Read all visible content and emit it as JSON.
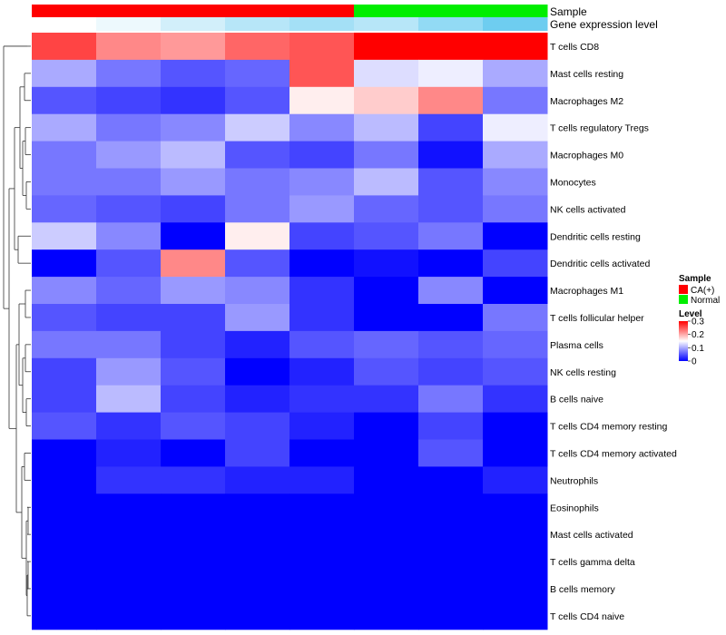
{
  "chart_data": {
    "type": "heatmap",
    "rows": [
      "T cells CD8",
      "Mast cells resting",
      "Macrophages M2",
      "T cells regulatory  Tregs",
      "Macrophages M0",
      "Monocytes",
      "NK cells activated",
      "Dendritic cells resting",
      "Dendritic cells activated",
      "Macrophages M1",
      "T cells follicular helper",
      "Plasma cells",
      "NK cells resting",
      "B cells naive",
      "T cells CD4 memory resting",
      "T cells CD4 memory activated",
      "Neutrophils",
      "Eosinophils",
      "Mast cells activated",
      "T cells gamma delta",
      "B cells memory",
      "T cells CD4 naive"
    ],
    "columns": 8,
    "values": [
      [
        0.26,
        0.22,
        0.21,
        0.24,
        0.25,
        0.3,
        0.3,
        0.3
      ],
      [
        0.1,
        0.07,
        0.05,
        0.06,
        0.25,
        0.13,
        0.14,
        0.1
      ],
      [
        0.05,
        0.04,
        0.03,
        0.05,
        0.16,
        0.18,
        0.22,
        0.07
      ],
      [
        0.1,
        0.07,
        0.08,
        0.12,
        0.08,
        0.11,
        0.04,
        0.14
      ],
      [
        0.07,
        0.09,
        0.11,
        0.05,
        0.04,
        0.07,
        0.01,
        0.1
      ],
      [
        0.07,
        0.07,
        0.09,
        0.07,
        0.08,
        0.11,
        0.05,
        0.08
      ],
      [
        0.06,
        0.05,
        0.04,
        0.07,
        0.09,
        0.06,
        0.05,
        0.07
      ],
      [
        0.12,
        0.08,
        0.0,
        0.16,
        0.04,
        0.05,
        0.07,
        0.0
      ],
      [
        0.0,
        0.05,
        0.22,
        0.05,
        0.0,
        0.01,
        0.0,
        0.04
      ],
      [
        0.08,
        0.06,
        0.09,
        0.08,
        0.03,
        0.0,
        0.08,
        0.0
      ],
      [
        0.05,
        0.04,
        0.04,
        0.09,
        0.03,
        0.0,
        0.0,
        0.07
      ],
      [
        0.07,
        0.07,
        0.04,
        0.02,
        0.05,
        0.06,
        0.05,
        0.06
      ],
      [
        0.04,
        0.09,
        0.05,
        0.0,
        0.02,
        0.05,
        0.04,
        0.05
      ],
      [
        0.04,
        0.11,
        0.04,
        0.02,
        0.03,
        0.03,
        0.07,
        0.03
      ],
      [
        0.05,
        0.03,
        0.05,
        0.04,
        0.02,
        0.0,
        0.04,
        0.0
      ],
      [
        0.0,
        0.02,
        0.0,
        0.04,
        0.0,
        0.0,
        0.05,
        0.0
      ],
      [
        0.0,
        0.03,
        0.03,
        0.02,
        0.02,
        0.0,
        0.0,
        0.02
      ],
      [
        0.0,
        0.0,
        0.0,
        0.0,
        0.0,
        0.0,
        0.0,
        0.0
      ],
      [
        0.0,
        0.0,
        0.0,
        0.0,
        0.0,
        0.0,
        0.0,
        0.0
      ],
      [
        0.0,
        0.0,
        0.0,
        0.0,
        0.0,
        0.0,
        0.0,
        0.0
      ],
      [
        0.0,
        0.0,
        0.0,
        0.0,
        0.0,
        0.0,
        0.0,
        0.0
      ],
      [
        0.0,
        0.0,
        0.0,
        0.0,
        0.0,
        0.0,
        0.0,
        0.0
      ]
    ],
    "color_scale": {
      "min": 0,
      "mid": 0.15,
      "max": 0.3,
      "low_color": "#0000ff",
      "mid_color": "#ffffff",
      "high_color": "#ff0000"
    },
    "annotations": {
      "sample": {
        "label": "Sample",
        "values": [
          "CA(+)",
          "CA(+)",
          "CA(+)",
          "CA(+)",
          "CA(+)",
          "Normal",
          "Normal",
          "Normal"
        ],
        "colors": {
          "CA(+)": "#ff0000",
          "Normal": "#00ee00"
        }
      },
      "gene_expression": {
        "label": "Gene expression level",
        "levels": [
          0.0,
          0.02,
          0.05,
          0.08,
          0.1,
          0.08,
          0.12,
          0.16
        ]
      }
    },
    "legend": {
      "sample_title": "Sample",
      "sample_entries": [
        "CA(+)",
        "Normal"
      ],
      "level_title": "Level",
      "level_ticks": [
        "0.3",
        "0.2",
        "0.1",
        "0"
      ],
      "level_tick_values": [
        0.3,
        0.2,
        0.1,
        0
      ]
    },
    "row_dendrogram": "left"
  }
}
